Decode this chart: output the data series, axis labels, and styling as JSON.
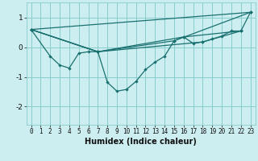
{
  "title": "",
  "xlabel": "Humidex (Indice chaleur)",
  "background_color": "#cceef0",
  "grid_color": "#88cccc",
  "line_color": "#1a7070",
  "xlim": [
    -0.5,
    23.5
  ],
  "ylim": [
    -2.6,
    1.5
  ],
  "xticks": [
    0,
    1,
    2,
    3,
    4,
    5,
    6,
    7,
    8,
    9,
    10,
    11,
    12,
    13,
    14,
    15,
    16,
    17,
    18,
    19,
    20,
    21,
    22,
    23
  ],
  "yticks": [
    -2,
    -1,
    0,
    1
  ],
  "series": [
    {
      "x": [
        0,
        2,
        3,
        4,
        5,
        6,
        7,
        8,
        9,
        10,
        11,
        12,
        13,
        14,
        15,
        16,
        17,
        18,
        19,
        20,
        21,
        22,
        23
      ],
      "y": [
        0.6,
        -0.3,
        -0.6,
        -0.7,
        -0.2,
        -0.15,
        -0.15,
        -1.18,
        -1.48,
        -1.42,
        -1.15,
        -0.75,
        -0.5,
        -0.3,
        0.22,
        0.35,
        0.13,
        0.18,
        0.28,
        0.38,
        0.55,
        0.55,
        1.18
      ]
    },
    {
      "x": [
        0,
        23
      ],
      "y": [
        0.6,
        1.18
      ]
    },
    {
      "x": [
        0,
        7,
        15,
        23
      ],
      "y": [
        0.6,
        -0.15,
        0.22,
        1.18
      ]
    },
    {
      "x": [
        0,
        7,
        16,
        22
      ],
      "y": [
        0.6,
        -0.15,
        0.35,
        0.55
      ]
    },
    {
      "x": [
        0,
        7,
        18,
        22
      ],
      "y": [
        0.6,
        -0.15,
        0.18,
        0.55
      ]
    }
  ]
}
